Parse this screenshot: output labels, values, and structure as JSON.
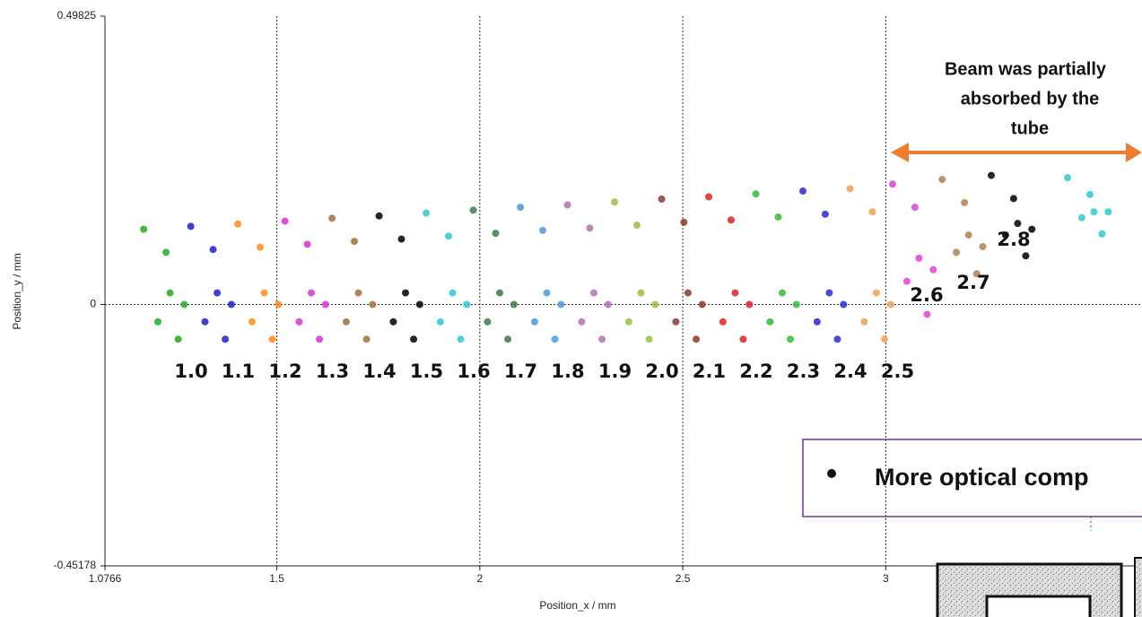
{
  "chart_data": {
    "type": "scatter",
    "xlabel": "Position_x / mm",
    "ylabel": "Position_y / mm",
    "xlim": [
      1.0766,
      3.6313
    ],
    "ylim": [
      -0.45178,
      0.49825
    ],
    "xticks": [
      1.0766,
      1.5,
      2,
      2.5,
      3
    ],
    "yticks": [
      -0.45178,
      0,
      0.49825
    ],
    "grid": true,
    "series": [
      {
        "name": "1.0",
        "color": "#22aa22",
        "x": [
          1.172,
          1.227,
          1.237,
          1.207,
          1.257,
          1.272
        ],
        "y": [
          0.13,
          0.09,
          0.02,
          -0.03,
          -0.06,
          0.0
        ]
      },
      {
        "name": "1.1",
        "color": "#1f1fd0",
        "x": [
          1.288,
          1.343,
          1.353,
          1.323,
          1.373,
          1.388
        ],
        "y": [
          0.135,
          0.095,
          0.02,
          -0.03,
          -0.06,
          0.0
        ]
      },
      {
        "name": "1.2",
        "color": "#ff8c1a",
        "x": [
          1.404,
          1.459,
          1.469,
          1.439,
          1.489,
          1.504
        ],
        "y": [
          0.139,
          0.099,
          0.02,
          -0.03,
          -0.06,
          0.0
        ]
      },
      {
        "name": "1.3",
        "color": "#d633d6",
        "x": [
          1.52,
          1.575,
          1.585,
          1.555,
          1.605,
          1.62
        ],
        "y": [
          0.144,
          0.104,
          0.02,
          -0.03,
          -0.06,
          0.0
        ]
      },
      {
        "name": "1.4",
        "color": "#a0703a",
        "x": [
          1.636,
          1.691,
          1.701,
          1.671,
          1.721,
          1.736
        ],
        "y": [
          0.149,
          0.109,
          0.02,
          -0.03,
          -0.06,
          0.0
        ]
      },
      {
        "name": "1.5",
        "color": "#000000",
        "x": [
          1.752,
          1.807,
          1.817,
          1.787,
          1.837,
          1.852
        ],
        "y": [
          0.153,
          0.113,
          0.02,
          -0.03,
          -0.06,
          0.0
        ]
      },
      {
        "name": "1.6",
        "color": "#2ec8d0",
        "x": [
          1.868,
          1.923,
          1.933,
          1.903,
          1.953,
          1.968
        ],
        "y": [
          0.158,
          0.118,
          0.02,
          -0.03,
          -0.06,
          0.0
        ]
      },
      {
        "name": "1.7",
        "color": "#3a7a4a",
        "x": [
          1.984,
          2.039,
          2.049,
          2.019,
          2.069,
          2.084
        ],
        "y": [
          0.163,
          0.123,
          0.02,
          -0.03,
          -0.06,
          0.0
        ]
      },
      {
        "name": "1.8",
        "color": "#4a9ade",
        "x": [
          2.1,
          2.155,
          2.165,
          2.135,
          2.185,
          2.2
        ],
        "y": [
          0.168,
          0.128,
          0.02,
          -0.03,
          -0.06,
          0.0
        ]
      },
      {
        "name": "1.9",
        "color": "#b070b0",
        "x": [
          2.216,
          2.271,
          2.281,
          2.251,
          2.301,
          2.316
        ],
        "y": [
          0.172,
          0.132,
          0.02,
          -0.03,
          -0.06,
          0.0
        ]
      },
      {
        "name": "2.0",
        "color": "#9ac040",
        "x": [
          2.332,
          2.387,
          2.397,
          2.367,
          2.417,
          2.432
        ],
        "y": [
          0.177,
          0.137,
          0.02,
          -0.03,
          -0.06,
          0.0
        ]
      },
      {
        "name": "2.1",
        "color": "#8b3a2a",
        "x": [
          2.448,
          2.503,
          2.513,
          2.483,
          2.533,
          2.548
        ],
        "y": [
          0.182,
          0.142,
          0.02,
          -0.03,
          -0.06,
          0.0
        ]
      },
      {
        "name": "2.2",
        "color": "#e02020",
        "x": [
          2.564,
          2.619,
          2.629,
          2.599,
          2.649,
          2.664
        ],
        "y": [
          0.186,
          0.146,
          0.02,
          -0.03,
          -0.06,
          0.0
        ]
      },
      {
        "name": "2.3",
        "color": "#33bb33",
        "x": [
          2.68,
          2.735,
          2.745,
          2.715,
          2.765,
          2.78
        ],
        "y": [
          0.191,
          0.151,
          0.02,
          -0.03,
          -0.06,
          0.0
        ]
      },
      {
        "name": "2.4",
        "color": "#2a2ad0",
        "x": [
          2.796,
          2.851,
          2.861,
          2.831,
          2.881,
          2.896
        ],
        "y": [
          0.196,
          0.156,
          0.02,
          -0.03,
          -0.06,
          0.0
        ]
      },
      {
        "name": "2.5",
        "color": "#f0a050",
        "x": [
          2.912,
          2.967,
          2.977,
          2.947,
          2.997,
          3.012
        ],
        "y": [
          0.2,
          0.16,
          0.02,
          -0.03,
          -0.06,
          0.0
        ]
      },
      {
        "name": "2.6",
        "color": "#e040e0",
        "x": [
          3.017,
          3.072,
          3.082,
          3.052,
          3.102,
          3.117
        ],
        "y": [
          0.208,
          0.168,
          0.08,
          0.04,
          -0.017,
          0.06
        ]
      },
      {
        "name": "2.7",
        "color": "#b08050",
        "x": [
          3.139,
          3.194,
          3.204,
          3.174,
          3.224,
          3.239
        ],
        "y": [
          0.216,
          0.176,
          0.12,
          0.09,
          0.053,
          0.1
        ]
      },
      {
        "name": "2.8",
        "color": "#000000",
        "x": [
          3.26,
          3.315,
          3.325,
          3.295,
          3.345,
          3.36
        ],
        "y": [
          0.223,
          0.183,
          0.14,
          0.12,
          0.084,
          0.13
        ]
      },
      {
        "color": "#2ec8d0",
        "x": [
          3.448,
          3.503,
          3.513,
          3.483,
          3.533,
          3.548
        ],
        "y": [
          0.219,
          0.19,
          0.16,
          0.15,
          0.122,
          0.16
        ]
      }
    ],
    "annotations": {
      "beam_note": [
        "Beam was partially",
        "absorbed by the",
        "tube"
      ],
      "box_note": "More optical comp"
    }
  }
}
